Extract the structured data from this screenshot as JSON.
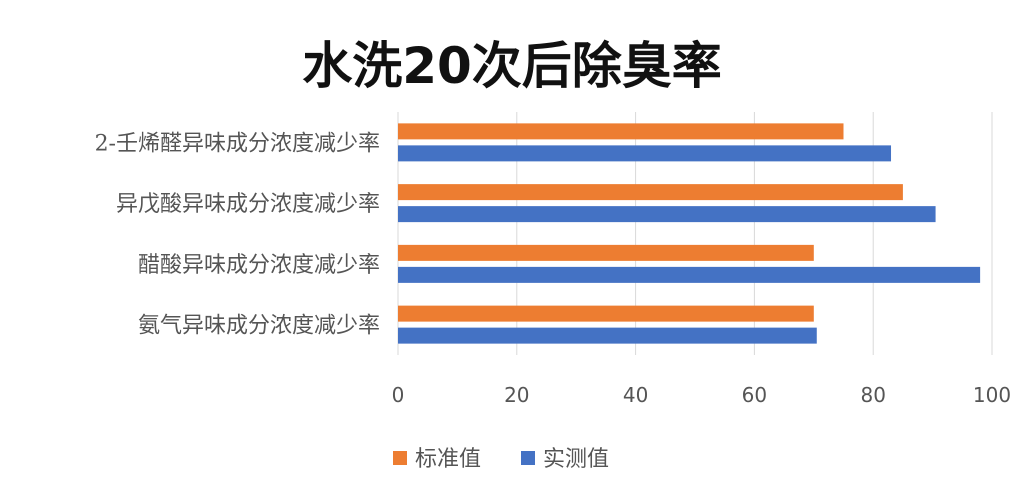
{
  "chart_data": {
    "type": "bar",
    "orientation": "horizontal",
    "title": "水洗20次后除臭率",
    "categories": [
      "2-壬烯醛异味成分浓度减少率",
      "异戊酸异味成分浓度减少率",
      "醋酸异味成分浓度减少率",
      "氨气异味成分浓度减少率"
    ],
    "series": [
      {
        "name": "标准值",
        "color": "#ED7D31",
        "values": [
          75,
          85,
          70,
          70
        ]
      },
      {
        "name": "实测值",
        "color": "#4472C4",
        "values": [
          83,
          90.5,
          98,
          70.5
        ]
      }
    ],
    "xlim": [
      0,
      100
    ],
    "xticks": [
      0,
      20,
      40,
      60,
      80,
      100
    ],
    "grid": true,
    "legend": "bottom"
  }
}
